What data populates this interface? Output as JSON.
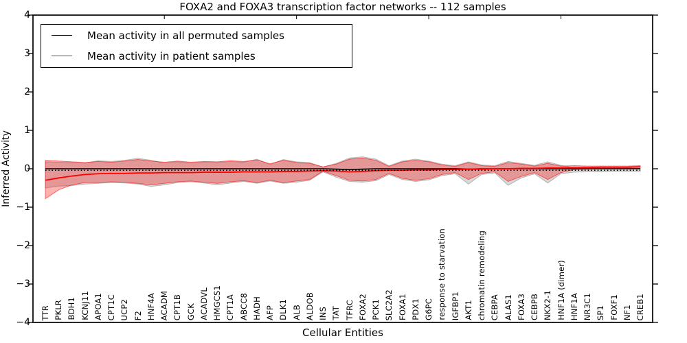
{
  "figure": {
    "title": "FOXA2 and FOXA3 transcription factor networks -- 112 samples",
    "xlabel": "Cellular Entities",
    "ylabel": "Inferred Activity"
  },
  "legend": {
    "entries": [
      {
        "label": "Mean activity in all permuted samples",
        "color": "#000000"
      },
      {
        "label": "Mean activity in patient samples",
        "color": "#ff0000"
      }
    ],
    "position": "upper left"
  },
  "chart_data": {
    "type": "line",
    "title": "FOXA2 and FOXA3 transcription factor networks -- 112 samples",
    "xlabel": "Cellular Entities",
    "ylabel": "Inferred Activity",
    "ylim": [
      -4,
      4
    ],
    "ytick_labels": [
      "4",
      "3",
      "2",
      "1",
      "0",
      "−1",
      "−2",
      "−3",
      "−4"
    ],
    "ytick_values": [
      4,
      3,
      2,
      1,
      0,
      -1,
      -2,
      -3,
      -4
    ],
    "xtick_marks_at_entity": [
      10,
      20,
      30,
      40
    ],
    "grid": false,
    "legend_position": "upper left",
    "categories": [
      "TTR",
      "PKLR",
      "BDH1",
      "KCNJ11",
      "APOA1",
      "CPT1C",
      "UCP2",
      "F2",
      "HNF4A",
      "ACADM",
      "CPT1B",
      "GCK",
      "ACADVL",
      "HMGCS1",
      "CPT1A",
      "ABCC8",
      "HADH",
      "AFP",
      "DLK1",
      "ALB",
      "ALDOB",
      "INS",
      "TAT",
      "TFRC",
      "FOXA2",
      "PCK1",
      "SLC2A2",
      "FOXA1",
      "PDX1",
      "G6PC",
      "response to starvation",
      "IGFBP1",
      "AKT1",
      "chromatin remodeling",
      "CEBPA",
      "ALAS1",
      "FOXA3",
      "CEBPB",
      "NKX2-1",
      "HNF1A (dimer)",
      "HNF1A",
      "NR3C1",
      "SP1",
      "FOXF1",
      "NF1",
      "CREB1"
    ],
    "series": [
      {
        "name": "Mean activity in all permuted samples",
        "color": "#000000",
        "linestyle": "solid",
        "linewidth": 1.6,
        "values": [
          0,
          0,
          0,
          0,
          0,
          0,
          0,
          0,
          0,
          0,
          0,
          0,
          0,
          0,
          0,
          0,
          0,
          0,
          0,
          0,
          0,
          0,
          -0.01,
          -0.02,
          -0.01,
          0,
          0,
          0,
          0,
          0,
          0,
          0,
          -0.01,
          0,
          0,
          0,
          0,
          0,
          0,
          0,
          0,
          0,
          0,
          0,
          0,
          0
        ]
      },
      {
        "name": "Mean activity in patient samples",
        "color": "#ff0000",
        "linestyle": "solid",
        "linewidth": 1.8,
        "values": [
          -0.3,
          -0.24,
          -0.19,
          -0.15,
          -0.13,
          -0.12,
          -0.12,
          -0.11,
          -0.11,
          -0.1,
          -0.1,
          -0.1,
          -0.09,
          -0.09,
          -0.09,
          -0.08,
          -0.08,
          -0.08,
          -0.07,
          -0.07,
          -0.06,
          -0.05,
          -0.06,
          -0.08,
          -0.07,
          -0.05,
          -0.04,
          -0.04,
          -0.03,
          -0.03,
          -0.02,
          -0.02,
          -0.01,
          -0.01,
          0.0,
          0.0,
          0.01,
          0.01,
          0.02,
          0.02,
          0.03,
          0.03,
          0.04,
          0.04,
          0.04,
          0.05
        ]
      },
      {
        "name": "baseline",
        "color": "#000000",
        "linestyle": "dotted",
        "linewidth": 1.6,
        "constant": -0.04
      }
    ],
    "bands": [
      {
        "name": "permuted-activity-range",
        "fill": "rgba(0,0,0,0.15)",
        "edge": "rgba(110,110,110,0.45)",
        "upper": [
          0.18,
          0.17,
          0.16,
          0.15,
          0.21,
          0.19,
          0.22,
          0.27,
          0.22,
          0.15,
          0.18,
          0.15,
          0.17,
          0.16,
          0.19,
          0.17,
          0.25,
          0.11,
          0.24,
          0.18,
          0.16,
          0.04,
          0.14,
          0.28,
          0.31,
          0.25,
          0.08,
          0.2,
          0.25,
          0.2,
          0.12,
          0.08,
          0.18,
          0.1,
          0.08,
          0.19,
          0.14,
          0.09,
          0.18,
          0.09,
          0.03,
          0.02,
          0.02,
          0.02,
          0.02,
          0.01
        ],
        "lower": [
          -0.5,
          -0.45,
          -0.44,
          -0.4,
          -0.38,
          -0.36,
          -0.37,
          -0.4,
          -0.46,
          -0.42,
          -0.36,
          -0.34,
          -0.37,
          -0.42,
          -0.37,
          -0.33,
          -0.38,
          -0.32,
          -0.38,
          -0.35,
          -0.3,
          -0.08,
          -0.22,
          -0.33,
          -0.35,
          -0.31,
          -0.15,
          -0.28,
          -0.33,
          -0.29,
          -0.18,
          -0.13,
          -0.4,
          -0.15,
          -0.11,
          -0.43,
          -0.24,
          -0.13,
          -0.37,
          -0.13,
          -0.09,
          -0.08,
          -0.08,
          -0.07,
          -0.07,
          -0.07
        ]
      },
      {
        "name": "patient-activity-range",
        "fill": "rgba(255,0,0,0.30)",
        "edge": "rgba(255,0,0,0.55)",
        "upper": [
          0.22,
          0.2,
          0.18,
          0.16,
          0.19,
          0.17,
          0.2,
          0.24,
          0.2,
          0.17,
          0.2,
          0.17,
          0.19,
          0.18,
          0.21,
          0.19,
          0.23,
          0.13,
          0.22,
          0.16,
          0.14,
          0.05,
          0.12,
          0.25,
          0.28,
          0.22,
          0.06,
          0.18,
          0.22,
          0.18,
          0.1,
          0.06,
          0.16,
          0.08,
          0.06,
          0.16,
          0.12,
          0.07,
          0.14,
          0.07,
          0.08,
          0.07,
          0.07,
          0.07,
          0.07,
          0.08
        ],
        "lower": [
          -0.78,
          -0.55,
          -0.42,
          -0.36,
          -0.36,
          -0.34,
          -0.35,
          -0.38,
          -0.42,
          -0.38,
          -0.34,
          -0.32,
          -0.35,
          -0.38,
          -0.34,
          -0.31,
          -0.36,
          -0.3,
          -0.36,
          -0.32,
          -0.28,
          -0.06,
          -0.18,
          -0.3,
          -0.32,
          -0.28,
          -0.12,
          -0.25,
          -0.3,
          -0.26,
          -0.15,
          -0.1,
          -0.28,
          -0.12,
          -0.08,
          -0.33,
          -0.2,
          -0.1,
          -0.28,
          -0.1,
          -0.02,
          -0.01,
          0.0,
          0.0,
          0.01,
          0.01
        ]
      }
    ]
  }
}
